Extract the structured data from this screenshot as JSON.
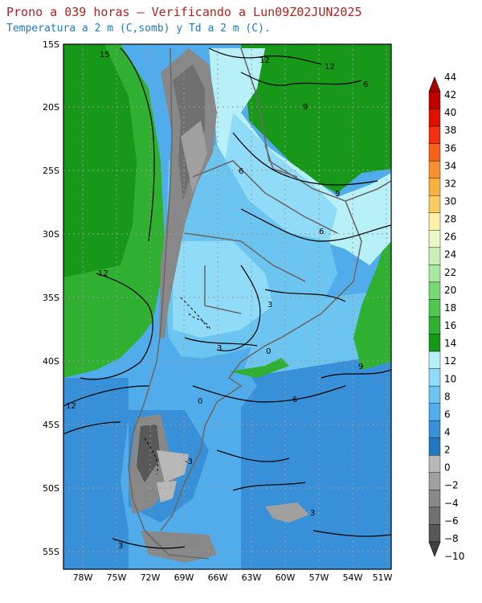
{
  "header": {
    "title": "Prono a 039 horas — Verificando a Lun09Z02JUN2025",
    "subtitle": "Temperatura a 2 m (C,somb) y Td a 2 m (C)."
  },
  "map": {
    "lat_labels": [
      "15S",
      "20S",
      "25S",
      "30S",
      "35S",
      "40S",
      "45S",
      "50S",
      "55S"
    ],
    "lon_labels": [
      "78W",
      "75W",
      "72W",
      "69W",
      "66W",
      "63W",
      "60W",
      "57W",
      "54W",
      "51W"
    ],
    "contour_labels": [
      {
        "text": "15",
        "id": "c15"
      },
      {
        "text": "12",
        "id": "c12a"
      },
      {
        "text": "12",
        "id": "c12b"
      },
      {
        "text": "12",
        "id": "c12c"
      },
      {
        "text": "9",
        "id": "c9a"
      },
      {
        "text": "9",
        "id": "c9b"
      },
      {
        "text": "9",
        "id": "c9c"
      },
      {
        "text": "6",
        "id": "c6a"
      },
      {
        "text": "6",
        "id": "c6b"
      },
      {
        "text": "6",
        "id": "c6c"
      },
      {
        "text": "6",
        "id": "c6d"
      },
      {
        "text": "3",
        "id": "c3a"
      },
      {
        "text": "3",
        "id": "c3b"
      },
      {
        "text": "3",
        "id": "c3c"
      },
      {
        "text": "3",
        "id": "c3d"
      },
      {
        "text": "0",
        "id": "c0a"
      },
      {
        "text": "0",
        "id": "c0b"
      },
      {
        "text": "-3",
        "id": "cm3"
      }
    ]
  },
  "colorbar": {
    "labels": [
      "44",
      "42",
      "40",
      "38",
      "36",
      "34",
      "32",
      "30",
      "28",
      "26",
      "24",
      "22",
      "20",
      "18",
      "16",
      "14",
      "12",
      "10",
      "8",
      "6",
      "4",
      "2",
      "0",
      "−2",
      "−4",
      "−6",
      "−8",
      "−10"
    ],
    "colors": [
      "#c00000",
      "#e01000",
      "#f03010",
      "#f86018",
      "#f89030",
      "#f8b040",
      "#f8cc60",
      "#fff0a8",
      "#e8f8c8",
      "#c8f0b8",
      "#a8e8a0",
      "#78d878",
      "#50c850",
      "#30b030",
      "#189818",
      "#b8f0f8",
      "#90dcf8",
      "#6cc4f0",
      "#50acea",
      "#3890d8",
      "#2078c0",
      "#b8b8b8",
      "#a0a0a0",
      "#888888",
      "#707070",
      "#585858"
    ]
  }
}
